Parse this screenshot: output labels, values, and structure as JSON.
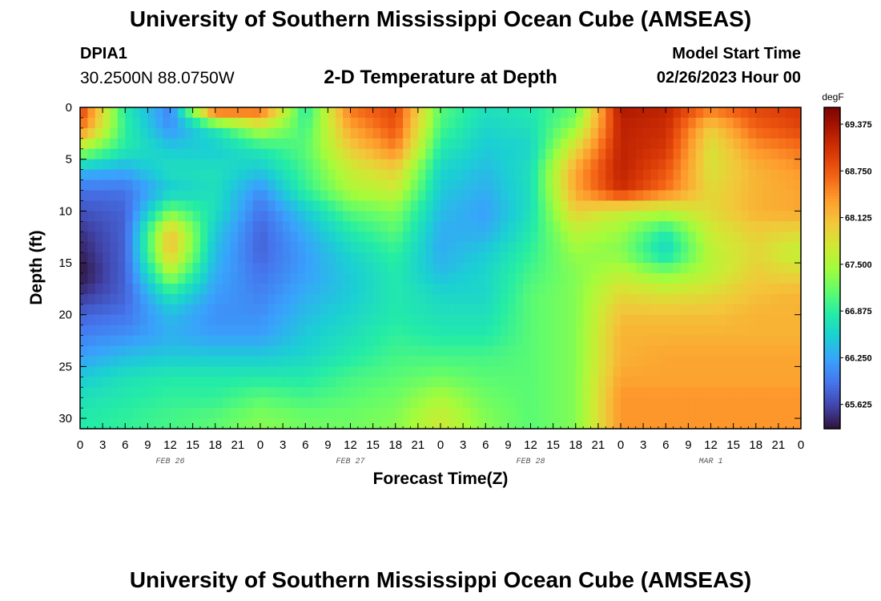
{
  "header": {
    "title": "University of Southern Mississippi Ocean Cube (AMSEAS)",
    "title_repeat": "University of Southern Mississippi Ocean Cube (AMSEAS)",
    "station": "DPIA1",
    "coordinates": "30.2500N  88.0750W",
    "subtitle": "2-D Temperature at Depth",
    "model_start_label": "Model Start Time",
    "model_start_value": "02/26/2023 Hour 00"
  },
  "chart_data": {
    "type": "heatmap",
    "xlabel": "Forecast Time(Z)",
    "ylabel": "Depth (ft)",
    "x_tick_labels": [
      "0",
      "3",
      "6",
      "9",
      "12",
      "15",
      "18",
      "21",
      "0",
      "3",
      "6",
      "9",
      "12",
      "15",
      "18",
      "21",
      "0",
      "3",
      "6",
      "9",
      "12",
      "15",
      "18",
      "21",
      "0",
      "3",
      "6",
      "9",
      "12",
      "15",
      "18",
      "21",
      "0"
    ],
    "date_labels": [
      "FEB 26",
      "FEB 27",
      "FEB 28",
      "MAR 1"
    ],
    "y_ticks": [
      0,
      5,
      10,
      15,
      20,
      25,
      30
    ],
    "y_range": [
      0,
      31
    ],
    "x_hours_range": [
      0,
      96
    ],
    "colorbar": {
      "unit": "degF",
      "ticks": [
        "69.375",
        "68.750",
        "68.125",
        "67.500",
        "66.875",
        "66.250",
        "65.625"
      ],
      "range": [
        65.3,
        69.6
      ],
      "colors": [
        "#30123b",
        "#4145ab",
        "#4675ed",
        "#39a2fc",
        "#1bcfd4",
        "#24eca6",
        "#61fc6c",
        "#a4fc3b",
        "#d1e834",
        "#f3c63a",
        "#fe9b2d",
        "#f36315",
        "#d93806",
        "#b11901",
        "#7a0403"
      ]
    },
    "depths_ft": [
      0,
      2,
      4,
      6,
      8,
      10,
      12,
      14,
      16,
      18,
      20,
      22,
      24,
      26,
      28,
      30,
      31
    ],
    "hours": [
      0,
      6,
      12,
      18,
      24,
      30,
      36,
      42,
      48,
      54,
      60,
      66,
      72,
      78,
      84,
      90,
      96
    ],
    "temperature_degF": [
      [
        69.0,
        66.8,
        66.0,
        69.0,
        68.8,
        66.8,
        68.6,
        68.9,
        67.1,
        66.7,
        66.8,
        67.1,
        69.3,
        69.2,
        68.6,
        68.9,
        69.0
      ],
      [
        68.6,
        66.9,
        66.1,
        66.8,
        67.6,
        67.0,
        68.3,
        68.8,
        67.0,
        66.6,
        66.7,
        67.4,
        69.2,
        69.1,
        68.0,
        68.7,
        68.9
      ],
      [
        67.5,
        66.8,
        66.5,
        66.5,
        66.8,
        67.1,
        68.0,
        68.5,
        66.8,
        66.5,
        66.6,
        67.9,
        69.2,
        69.0,
        67.8,
        68.4,
        68.6
      ],
      [
        66.4,
        66.3,
        66.7,
        66.7,
        66.5,
        67.0,
        67.7,
        68.0,
        66.6,
        66.4,
        66.7,
        68.3,
        69.2,
        68.8,
        67.8,
        68.2,
        68.4
      ],
      [
        65.9,
        65.9,
        66.5,
        66.7,
        66.1,
        66.9,
        67.5,
        67.7,
        66.5,
        66.3,
        66.7,
        68.3,
        69.1,
        68.6,
        67.9,
        68.2,
        68.3
      ],
      [
        65.7,
        65.8,
        67.2,
        66.7,
        65.9,
        66.5,
        67.1,
        67.3,
        66.4,
        66.2,
        66.7,
        68.0,
        67.7,
        67.6,
        67.9,
        68.2,
        68.3
      ],
      [
        65.5,
        65.8,
        68.1,
        66.5,
        65.8,
        66.3,
        66.8,
        67.1,
        66.3,
        66.3,
        66.8,
        67.6,
        67.4,
        66.8,
        67.7,
        68.0,
        67.9
      ],
      [
        65.4,
        65.8,
        68.1,
        66.4,
        65.8,
        66.2,
        66.6,
        66.9,
        66.3,
        66.5,
        66.9,
        67.4,
        67.3,
        66.6,
        67.6,
        67.9,
        67.6
      ],
      [
        65.3,
        65.8,
        67.5,
        66.3,
        65.9,
        66.2,
        66.5,
        66.8,
        66.4,
        66.6,
        67.0,
        67.3,
        67.6,
        67.3,
        67.6,
        68.0,
        67.9
      ],
      [
        65.5,
        65.8,
        66.8,
        66.2,
        66.0,
        66.3,
        66.5,
        66.8,
        66.6,
        66.6,
        67.1,
        67.3,
        67.9,
        67.8,
        67.9,
        68.1,
        68.2
      ],
      [
        65.8,
        65.9,
        66.4,
        66.1,
        66.1,
        66.4,
        66.6,
        66.8,
        66.7,
        66.7,
        67.1,
        67.3,
        68.1,
        68.1,
        68.1,
        68.2,
        68.2
      ],
      [
        66.0,
        66.1,
        66.3,
        66.2,
        66.2,
        66.5,
        66.7,
        66.9,
        66.8,
        66.8,
        67.1,
        67.3,
        68.2,
        68.2,
        68.2,
        68.2,
        68.2
      ],
      [
        66.2,
        66.4,
        66.5,
        66.5,
        66.5,
        66.6,
        66.8,
        67.0,
        67.0,
        67.0,
        67.1,
        67.3,
        68.2,
        68.3,
        68.3,
        68.3,
        68.3
      ],
      [
        66.5,
        66.7,
        66.8,
        66.8,
        66.8,
        66.8,
        67.0,
        67.1,
        67.2,
        67.1,
        67.1,
        67.3,
        68.3,
        68.3,
        68.3,
        68.3,
        68.3
      ],
      [
        66.7,
        66.8,
        66.9,
        66.9,
        67.1,
        67.0,
        67.1,
        67.2,
        67.5,
        67.2,
        67.1,
        67.3,
        68.4,
        68.4,
        68.4,
        68.4,
        68.4
      ],
      [
        66.8,
        66.9,
        67.0,
        67.1,
        67.3,
        67.2,
        67.2,
        67.3,
        67.7,
        67.3,
        67.1,
        67.3,
        68.4,
        68.4,
        68.4,
        68.4,
        68.4
      ],
      [
        66.8,
        66.9,
        67.0,
        67.1,
        67.3,
        67.2,
        67.2,
        67.3,
        67.7,
        67.3,
        67.1,
        67.3,
        68.4,
        68.4,
        68.4,
        68.4,
        68.4
      ]
    ]
  }
}
